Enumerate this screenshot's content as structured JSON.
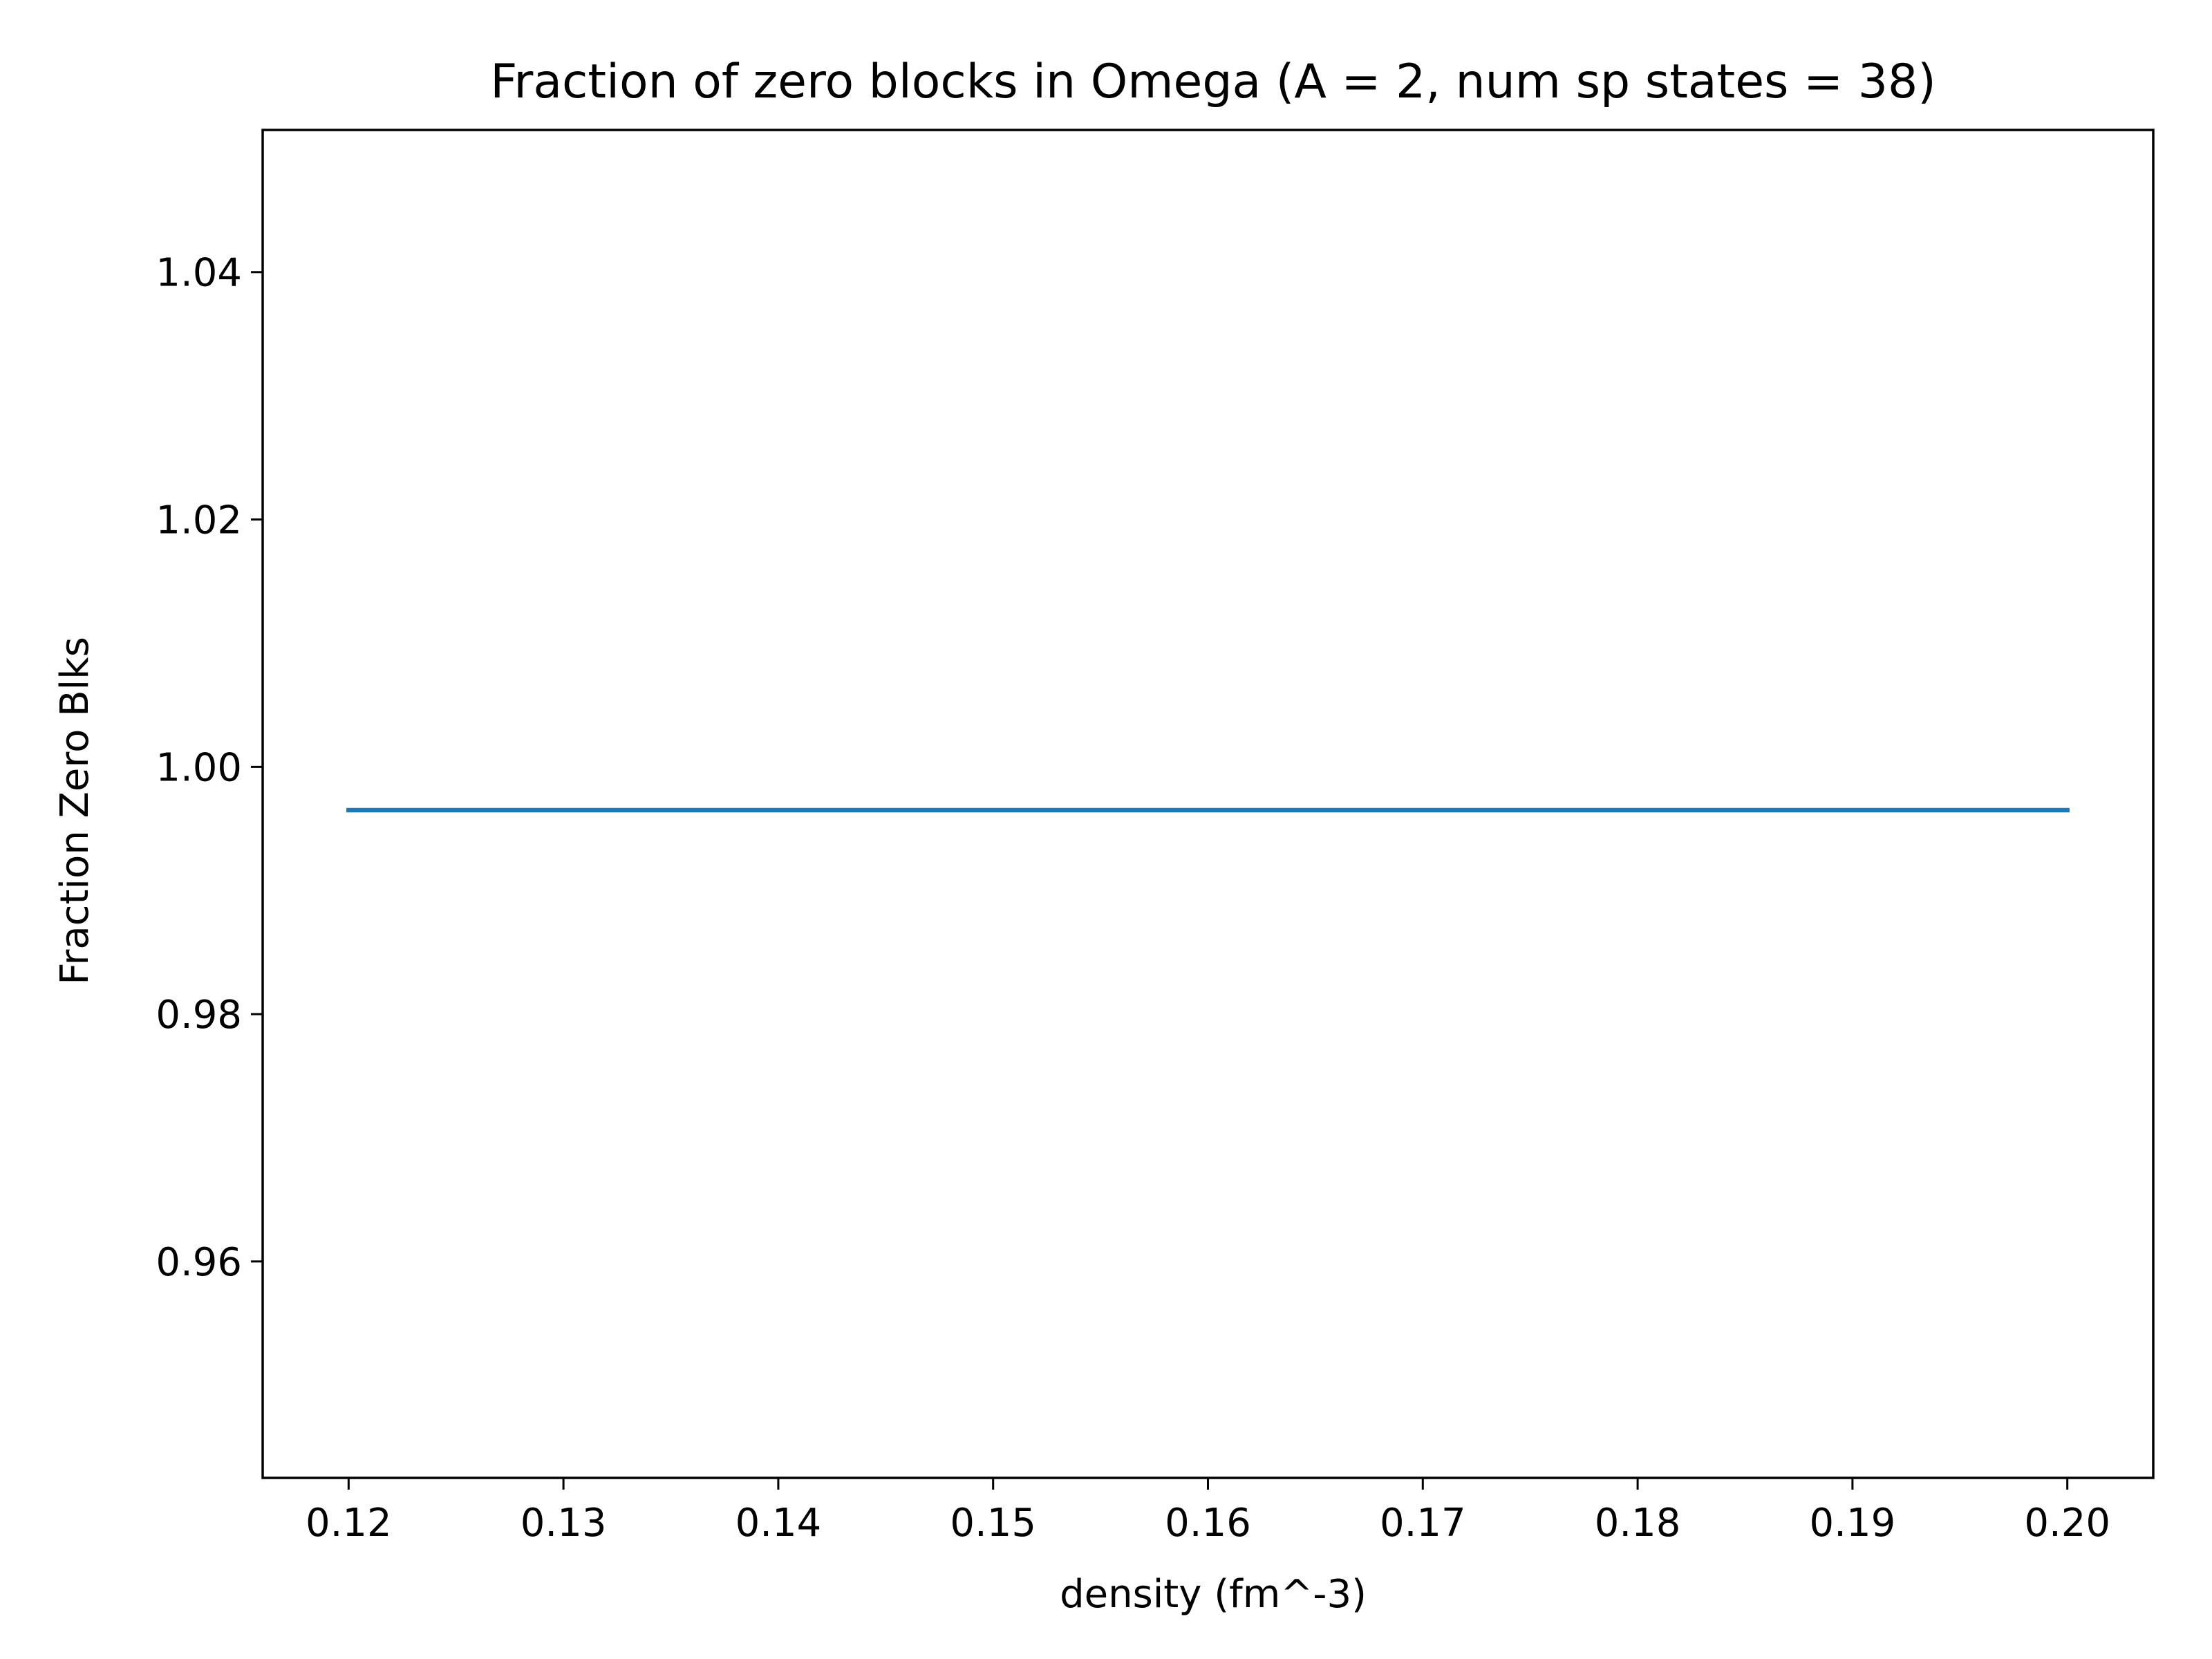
{
  "chart_data": {
    "type": "line",
    "title": "Fraction of zero blocks in Omega (A = 2, num sp states = 38)",
    "xlabel": "density (fm^-3)",
    "ylabel": "Fraction Zero Blks",
    "xlim": [
      0.116,
      0.204
    ],
    "ylim": [
      0.9425,
      1.0515
    ],
    "xticks": [
      0.12,
      0.13,
      0.14,
      0.15,
      0.16,
      0.17,
      0.18,
      0.19,
      0.2
    ],
    "xtick_labels": [
      "0.12",
      "0.13",
      "0.14",
      "0.15",
      "0.16",
      "0.17",
      "0.18",
      "0.19",
      "0.20"
    ],
    "yticks": [
      0.96,
      0.98,
      1.0,
      1.02,
      1.04
    ],
    "ytick_labels": [
      "0.96",
      "0.98",
      "1.00",
      "1.02",
      "1.04"
    ],
    "grid": false,
    "series": [
      {
        "color": "#1f77b4",
        "x": [
          0.12,
          0.2
        ],
        "y": [
          0.9965,
          0.9965
        ]
      }
    ]
  }
}
